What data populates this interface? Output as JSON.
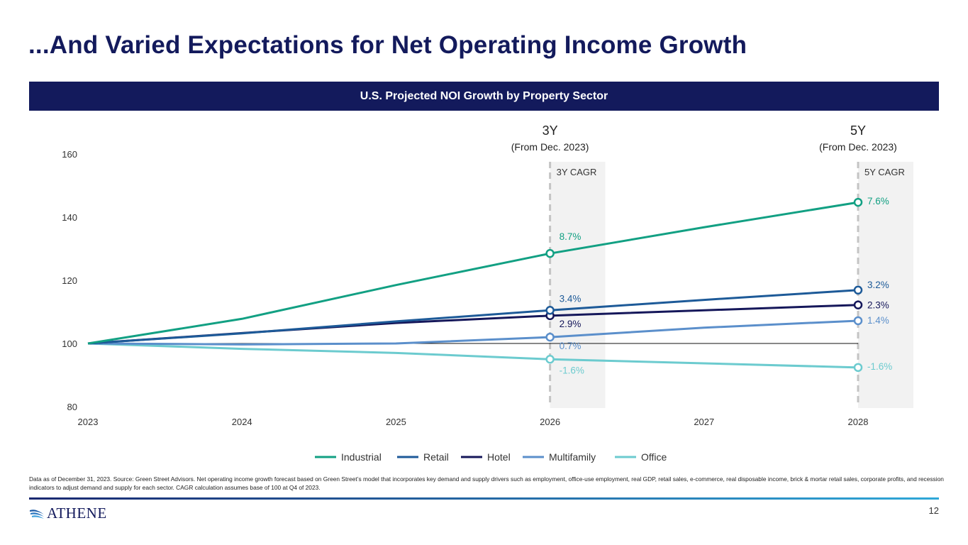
{
  "title": "...And Varied Expectations for Net Operating Income Growth",
  "banner": "U.S. Projected NOI Growth by Property Sector",
  "chart_data": {
    "type": "line",
    "title": "U.S. Projected NOI Growth by Property Sector",
    "x": [
      2023,
      2024,
      2025,
      2026,
      2027,
      2028
    ],
    "ylim": [
      80,
      160
    ],
    "yticks": [
      80,
      100,
      120,
      140,
      160
    ],
    "reference_line": 100,
    "series": [
      {
        "name": "Industrial",
        "color": "#12a083",
        "values": [
          100,
          107.8,
          118.5,
          128.5,
          136.8,
          144.7
        ],
        "cagr3": "8.7%",
        "cagr5": "7.6%"
      },
      {
        "name": "Retail",
        "color": "#1d5a98",
        "values": [
          100,
          103.2,
          107.0,
          110.5,
          113.8,
          116.9
        ],
        "cagr3": "3.4%",
        "cagr5": "3.2%"
      },
      {
        "name": "Hotel",
        "color": "#15175a",
        "values": [
          100,
          103.3,
          106.5,
          108.8,
          110.5,
          112.2
        ],
        "cagr3": "2.9%",
        "cagr5": "2.3%"
      },
      {
        "name": "Multifamily",
        "color": "#5b8fcb",
        "values": [
          100,
          99.7,
          100.0,
          102.0,
          105.0,
          107.2
        ],
        "cagr3": "0.7%",
        "cagr5": "1.4%"
      },
      {
        "name": "Office",
        "color": "#6ccbcf",
        "values": [
          100,
          98.3,
          97.0,
          95.0,
          93.7,
          92.4
        ],
        "cagr3": "-1.6%",
        "cagr5": "-1.6%"
      }
    ],
    "annotations": {
      "three_year": {
        "head": "3Y",
        "sub": "(From Dec. 2023)",
        "label": "3Y CAGR"
      },
      "five_year": {
        "head": "5Y",
        "sub": "(From Dec. 2023)",
        "label": "5Y CAGR"
      }
    },
    "legend_position": "bottom-center"
  },
  "footnote": "Data as of December 31, 2023. Source: Green Street Advisors. Net operating income growth forecast based on Green Street’s model that incorporates key demand and supply drivers such as employment, office-use employment, real GDP, retail sales, e-commerce, real disposable income, brick & mortar retail sales, corporate profits, and recession indicators to adjust demand and supply for each sector. CAGR calculation assumes base of 100 at Q4 of 2023.",
  "logo": "ATHENE",
  "page_number": "12"
}
